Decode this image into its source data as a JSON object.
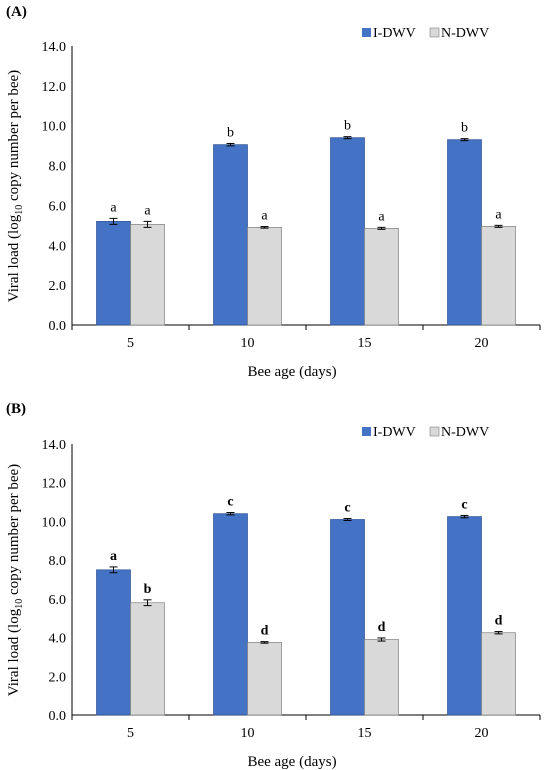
{
  "chart_data": [
    {
      "type": "bar",
      "panel_label": "(A)",
      "categories": [
        "5",
        "10",
        "15",
        "20"
      ],
      "series": [
        {
          "name": "I-DWV",
          "color": "#4472c4",
          "values": [
            5.2,
            9.05,
            9.4,
            9.3
          ],
          "errors": [
            0.15,
            0.06,
            0.05,
            0.05
          ],
          "letters": [
            "a",
            "b",
            "b",
            "b"
          ]
        },
        {
          "name": "N-DWV",
          "color": "#d9d9d9",
          "values": [
            5.05,
            4.9,
            4.85,
            4.95
          ],
          "errors": [
            0.15,
            0.04,
            0.05,
            0.05
          ],
          "letters": [
            "a",
            "a",
            "a",
            "a"
          ]
        }
      ],
      "xlabel": "Bee age (days)",
      "ylabel_pre": "Viral load (log",
      "ylabel_sub": "10",
      "ylabel_post": " copy number per bee)",
      "yticks": [
        "0.0",
        "2.0",
        "4.0",
        "6.0",
        "8.0",
        "10.0",
        "12.0",
        "14.0"
      ],
      "ylim": [
        0,
        14
      ],
      "legend": "top-right",
      "bold_letters": false
    },
    {
      "type": "bar",
      "panel_label": "(B)",
      "categories": [
        "5",
        "10",
        "15",
        "20"
      ],
      "series": [
        {
          "name": "I-DWV",
          "color": "#4472c4",
          "values": [
            7.5,
            10.4,
            10.1,
            10.25
          ],
          "errors": [
            0.15,
            0.06,
            0.05,
            0.06
          ],
          "letters": [
            "a",
            "c",
            "c",
            "c"
          ]
        },
        {
          "name": "N-DWV",
          "color": "#d9d9d9",
          "values": [
            5.8,
            3.75,
            3.9,
            4.25
          ],
          "errors": [
            0.15,
            0.04,
            0.08,
            0.06
          ],
          "letters": [
            "b",
            "d",
            "d",
            "d"
          ]
        }
      ],
      "xlabel": "Bee age (days)",
      "ylabel_pre": "Viral load (log",
      "ylabel_sub": "10",
      "ylabel_post": " copy number per bee)",
      "yticks": [
        "0.0",
        "2.0",
        "4.0",
        "6.0",
        "8.0",
        "10.0",
        "12.0",
        "14.0"
      ],
      "ylim": [
        0,
        14
      ],
      "legend": "top-right",
      "bold_letters": true
    }
  ]
}
